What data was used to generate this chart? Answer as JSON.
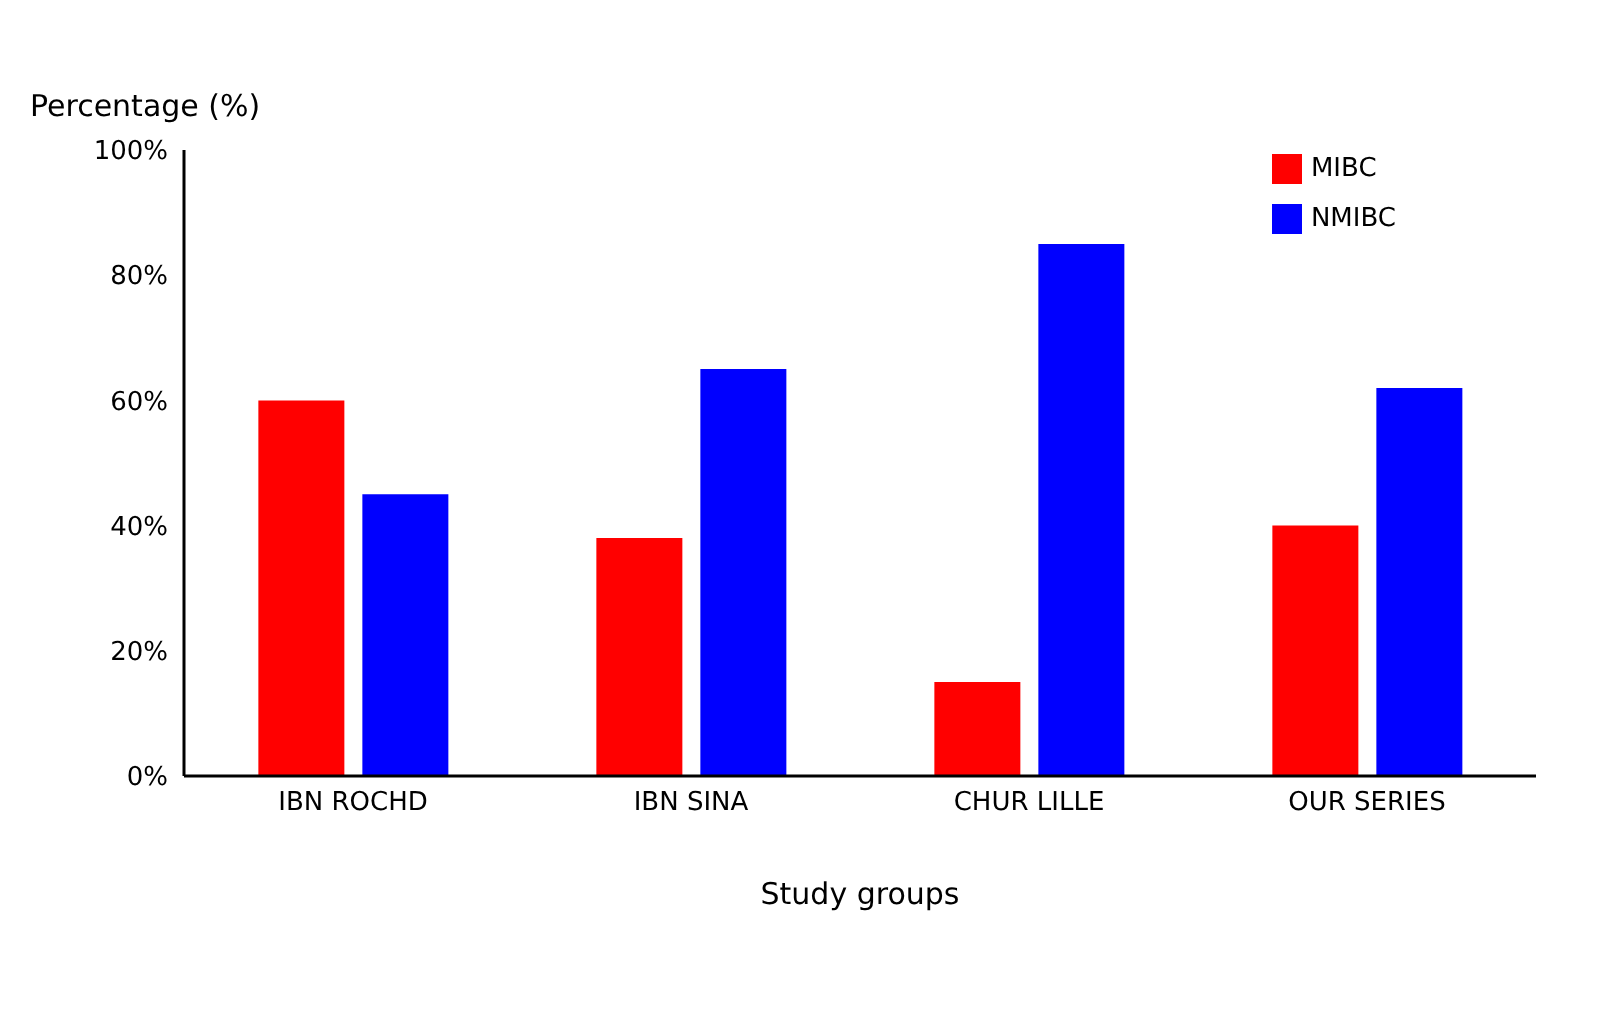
{
  "chart_data": {
    "type": "bar",
    "xlabel": "Study groups",
    "ylabel": "Percentage (%)",
    "categories": [
      "IBN ROCHD",
      "IBN SINA",
      "CHUR LILLE",
      "OUR SERIES"
    ],
    "series": [
      {
        "name": "MIBC",
        "color": "#ff0000",
        "values": [
          60,
          38,
          15,
          40
        ]
      },
      {
        "name": "NMIBC",
        "color": "#0000ff",
        "values": [
          45,
          65,
          85,
          62
        ]
      }
    ],
    "ylim": [
      0,
      100
    ],
    "yticks": [
      {
        "value": 0,
        "label": "0%"
      },
      {
        "value": 20,
        "label": "20%"
      },
      {
        "value": 40,
        "label": "40%"
      },
      {
        "value": 60,
        "label": "60%"
      },
      {
        "value": 80,
        "label": "80%"
      },
      {
        "value": 100,
        "label": "100%"
      }
    ],
    "grid": false,
    "legend": "top right"
  }
}
